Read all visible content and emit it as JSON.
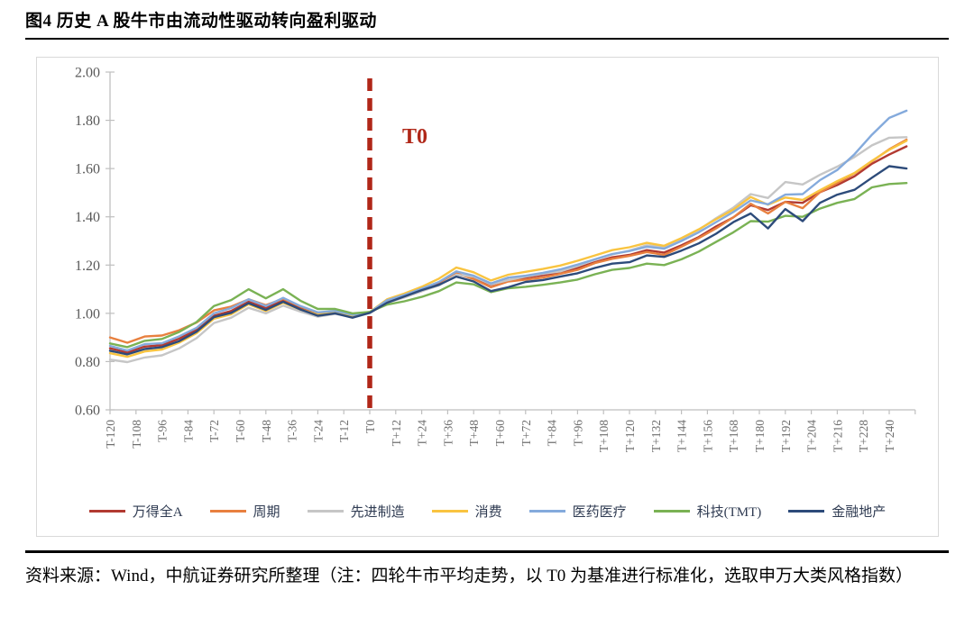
{
  "title": "图4  历史 A 股牛市由流动性驱动转向盈利驱动",
  "source_note": "资料来源：Wind，中航证券研究所整理（注：四轮牛市平均走势，以 T0 为基准进行标准化，选取申万大类风格指数）",
  "colors": {
    "annotation_red": "#b02718",
    "axis_line": "#bfbfbf",
    "tick_label": "#6f6f6f",
    "card_border": "#d9d9d9",
    "legend_text": "#2f3b52"
  },
  "chart_data": {
    "type": "line",
    "title": "",
    "xlabel": "",
    "ylabel": "",
    "grid": false,
    "legend_position": "bottom",
    "ylim": [
      0.6,
      2.0
    ],
    "y_ticks": [
      0.6,
      0.8,
      1.0,
      1.2,
      1.4,
      1.6,
      1.8,
      2.0
    ],
    "y_tick_labels": [
      "0.60",
      "0.80",
      "1.00",
      "1.20",
      "1.40",
      "1.60",
      "1.80",
      "2.00"
    ],
    "x_tick_values": [
      -120,
      -108,
      -96,
      -84,
      -72,
      -60,
      -48,
      -36,
      -24,
      -12,
      0,
      12,
      24,
      36,
      48,
      60,
      72,
      84,
      96,
      108,
      120,
      132,
      144,
      156,
      168,
      180,
      192,
      204,
      216,
      228,
      240
    ],
    "x_tick_labels": [
      "T-120",
      "T-108",
      "T-96",
      "T-84",
      "T-72",
      "T-60",
      "T-48",
      "T-36",
      "T-24",
      "T-12",
      "T0",
      "T+12",
      "T+24",
      "T+36",
      "T+48",
      "T+60",
      "T+72",
      "T+84",
      "T+96",
      "T+108",
      "T+120",
      "T+132",
      "T+144",
      "T+156",
      "T+168",
      "T+180",
      "T+192",
      "T+204",
      "T+216",
      "T+228",
      "T+240"
    ],
    "annotation": {
      "label": "T0",
      "x": 0
    },
    "x": [
      -120,
      -112,
      -104,
      -96,
      -88,
      -80,
      -72,
      -64,
      -56,
      -48,
      -40,
      -32,
      -24,
      -16,
      -8,
      0,
      8,
      16,
      24,
      32,
      40,
      48,
      56,
      64,
      72,
      80,
      88,
      96,
      104,
      112,
      120,
      128,
      136,
      144,
      152,
      160,
      168,
      176,
      184,
      192,
      200,
      208,
      216,
      224,
      232,
      240,
      248
    ],
    "series": [
      {
        "name": "万得全A",
        "color": "#b23a31",
        "values": [
          0.855,
          0.838,
          0.862,
          0.868,
          0.895,
          0.932,
          0.99,
          1.01,
          1.048,
          1.022,
          1.052,
          1.022,
          0.998,
          1.006,
          0.992,
          1.003,
          1.048,
          1.068,
          1.092,
          1.122,
          1.162,
          1.148,
          1.118,
          1.138,
          1.148,
          1.158,
          1.17,
          1.188,
          1.212,
          1.232,
          1.242,
          1.262,
          1.252,
          1.282,
          1.316,
          1.36,
          1.398,
          1.448,
          1.428,
          1.462,
          1.458,
          1.502,
          1.532,
          1.568,
          1.62,
          1.658,
          1.692
        ]
      },
      {
        "name": "周期",
        "color": "#e8803f",
        "values": [
          0.9,
          0.878,
          0.904,
          0.908,
          0.93,
          0.962,
          1.012,
          1.028,
          1.058,
          1.034,
          1.06,
          1.028,
          1.002,
          1.008,
          0.996,
          1.005,
          1.048,
          1.072,
          1.094,
          1.118,
          1.166,
          1.142,
          1.108,
          1.132,
          1.14,
          1.148,
          1.164,
          1.18,
          1.208,
          1.226,
          1.238,
          1.254,
          1.242,
          1.276,
          1.312,
          1.352,
          1.398,
          1.454,
          1.414,
          1.462,
          1.436,
          1.502,
          1.54,
          1.58,
          1.63,
          1.68,
          1.72
        ]
      },
      {
        "name": "先进制造",
        "color": "#c6c6c6",
        "values": [
          0.808,
          0.798,
          0.817,
          0.826,
          0.855,
          0.897,
          0.96,
          0.982,
          1.023,
          1.0,
          1.032,
          1.007,
          0.986,
          0.998,
          0.986,
          1.001,
          1.044,
          1.066,
          1.092,
          1.116,
          1.16,
          1.152,
          1.12,
          1.138,
          1.152,
          1.164,
          1.174,
          1.196,
          1.222,
          1.244,
          1.26,
          1.282,
          1.274,
          1.308,
          1.346,
          1.394,
          1.438,
          1.494,
          1.478,
          1.544,
          1.534,
          1.574,
          1.608,
          1.648,
          1.696,
          1.728,
          1.73
        ]
      },
      {
        "name": "消费",
        "color": "#f9c440",
        "values": [
          0.835,
          0.82,
          0.842,
          0.85,
          0.879,
          0.918,
          0.978,
          0.996,
          1.038,
          1.01,
          1.044,
          1.016,
          0.994,
          1.004,
          0.988,
          1.005,
          1.058,
          1.082,
          1.11,
          1.144,
          1.19,
          1.17,
          1.136,
          1.16,
          1.172,
          1.184,
          1.198,
          1.218,
          1.24,
          1.262,
          1.274,
          1.292,
          1.28,
          1.312,
          1.348,
          1.39,
          1.43,
          1.482,
          1.45,
          1.48,
          1.47,
          1.51,
          1.548,
          1.582,
          1.632,
          1.678,
          1.715
        ]
      },
      {
        "name": "医药医疗",
        "color": "#84aadc",
        "values": [
          0.865,
          0.846,
          0.872,
          0.876,
          0.905,
          0.94,
          1.0,
          1.022,
          1.058,
          1.03,
          1.064,
          1.03,
          1.004,
          1.01,
          0.994,
          1.004,
          1.054,
          1.076,
          1.102,
          1.13,
          1.174,
          1.156,
          1.124,
          1.148,
          1.156,
          1.168,
          1.182,
          1.202,
          1.224,
          1.246,
          1.258,
          1.276,
          1.268,
          1.3,
          1.336,
          1.378,
          1.42,
          1.468,
          1.452,
          1.492,
          1.494,
          1.552,
          1.594,
          1.66,
          1.74,
          1.81,
          1.84
        ]
      },
      {
        "name": "科技(TMT)",
        "color": "#7ab254",
        "values": [
          0.875,
          0.86,
          0.886,
          0.894,
          0.923,
          0.964,
          1.03,
          1.055,
          1.1,
          1.062,
          1.1,
          1.052,
          1.018,
          1.018,
          1.0,
          1.006,
          1.036,
          1.05,
          1.068,
          1.092,
          1.128,
          1.12,
          1.088,
          1.104,
          1.11,
          1.118,
          1.128,
          1.14,
          1.162,
          1.18,
          1.188,
          1.206,
          1.2,
          1.224,
          1.256,
          1.296,
          1.336,
          1.382,
          1.38,
          1.404,
          1.4,
          1.434,
          1.458,
          1.474,
          1.522,
          1.536,
          1.54
        ]
      },
      {
        "name": "金融地产",
        "color": "#2d4b7a",
        "values": [
          0.845,
          0.83,
          0.852,
          0.86,
          0.885,
          0.924,
          0.984,
          1.002,
          1.042,
          1.014,
          1.048,
          1.016,
          0.99,
          1.0,
          0.982,
          1.002,
          1.044,
          1.07,
          1.096,
          1.118,
          1.152,
          1.132,
          1.092,
          1.108,
          1.13,
          1.138,
          1.152,
          1.166,
          1.188,
          1.206,
          1.212,
          1.24,
          1.234,
          1.26,
          1.29,
          1.33,
          1.378,
          1.414,
          1.352,
          1.432,
          1.382,
          1.458,
          1.492,
          1.512,
          1.562,
          1.61,
          1.6
        ]
      }
    ]
  }
}
